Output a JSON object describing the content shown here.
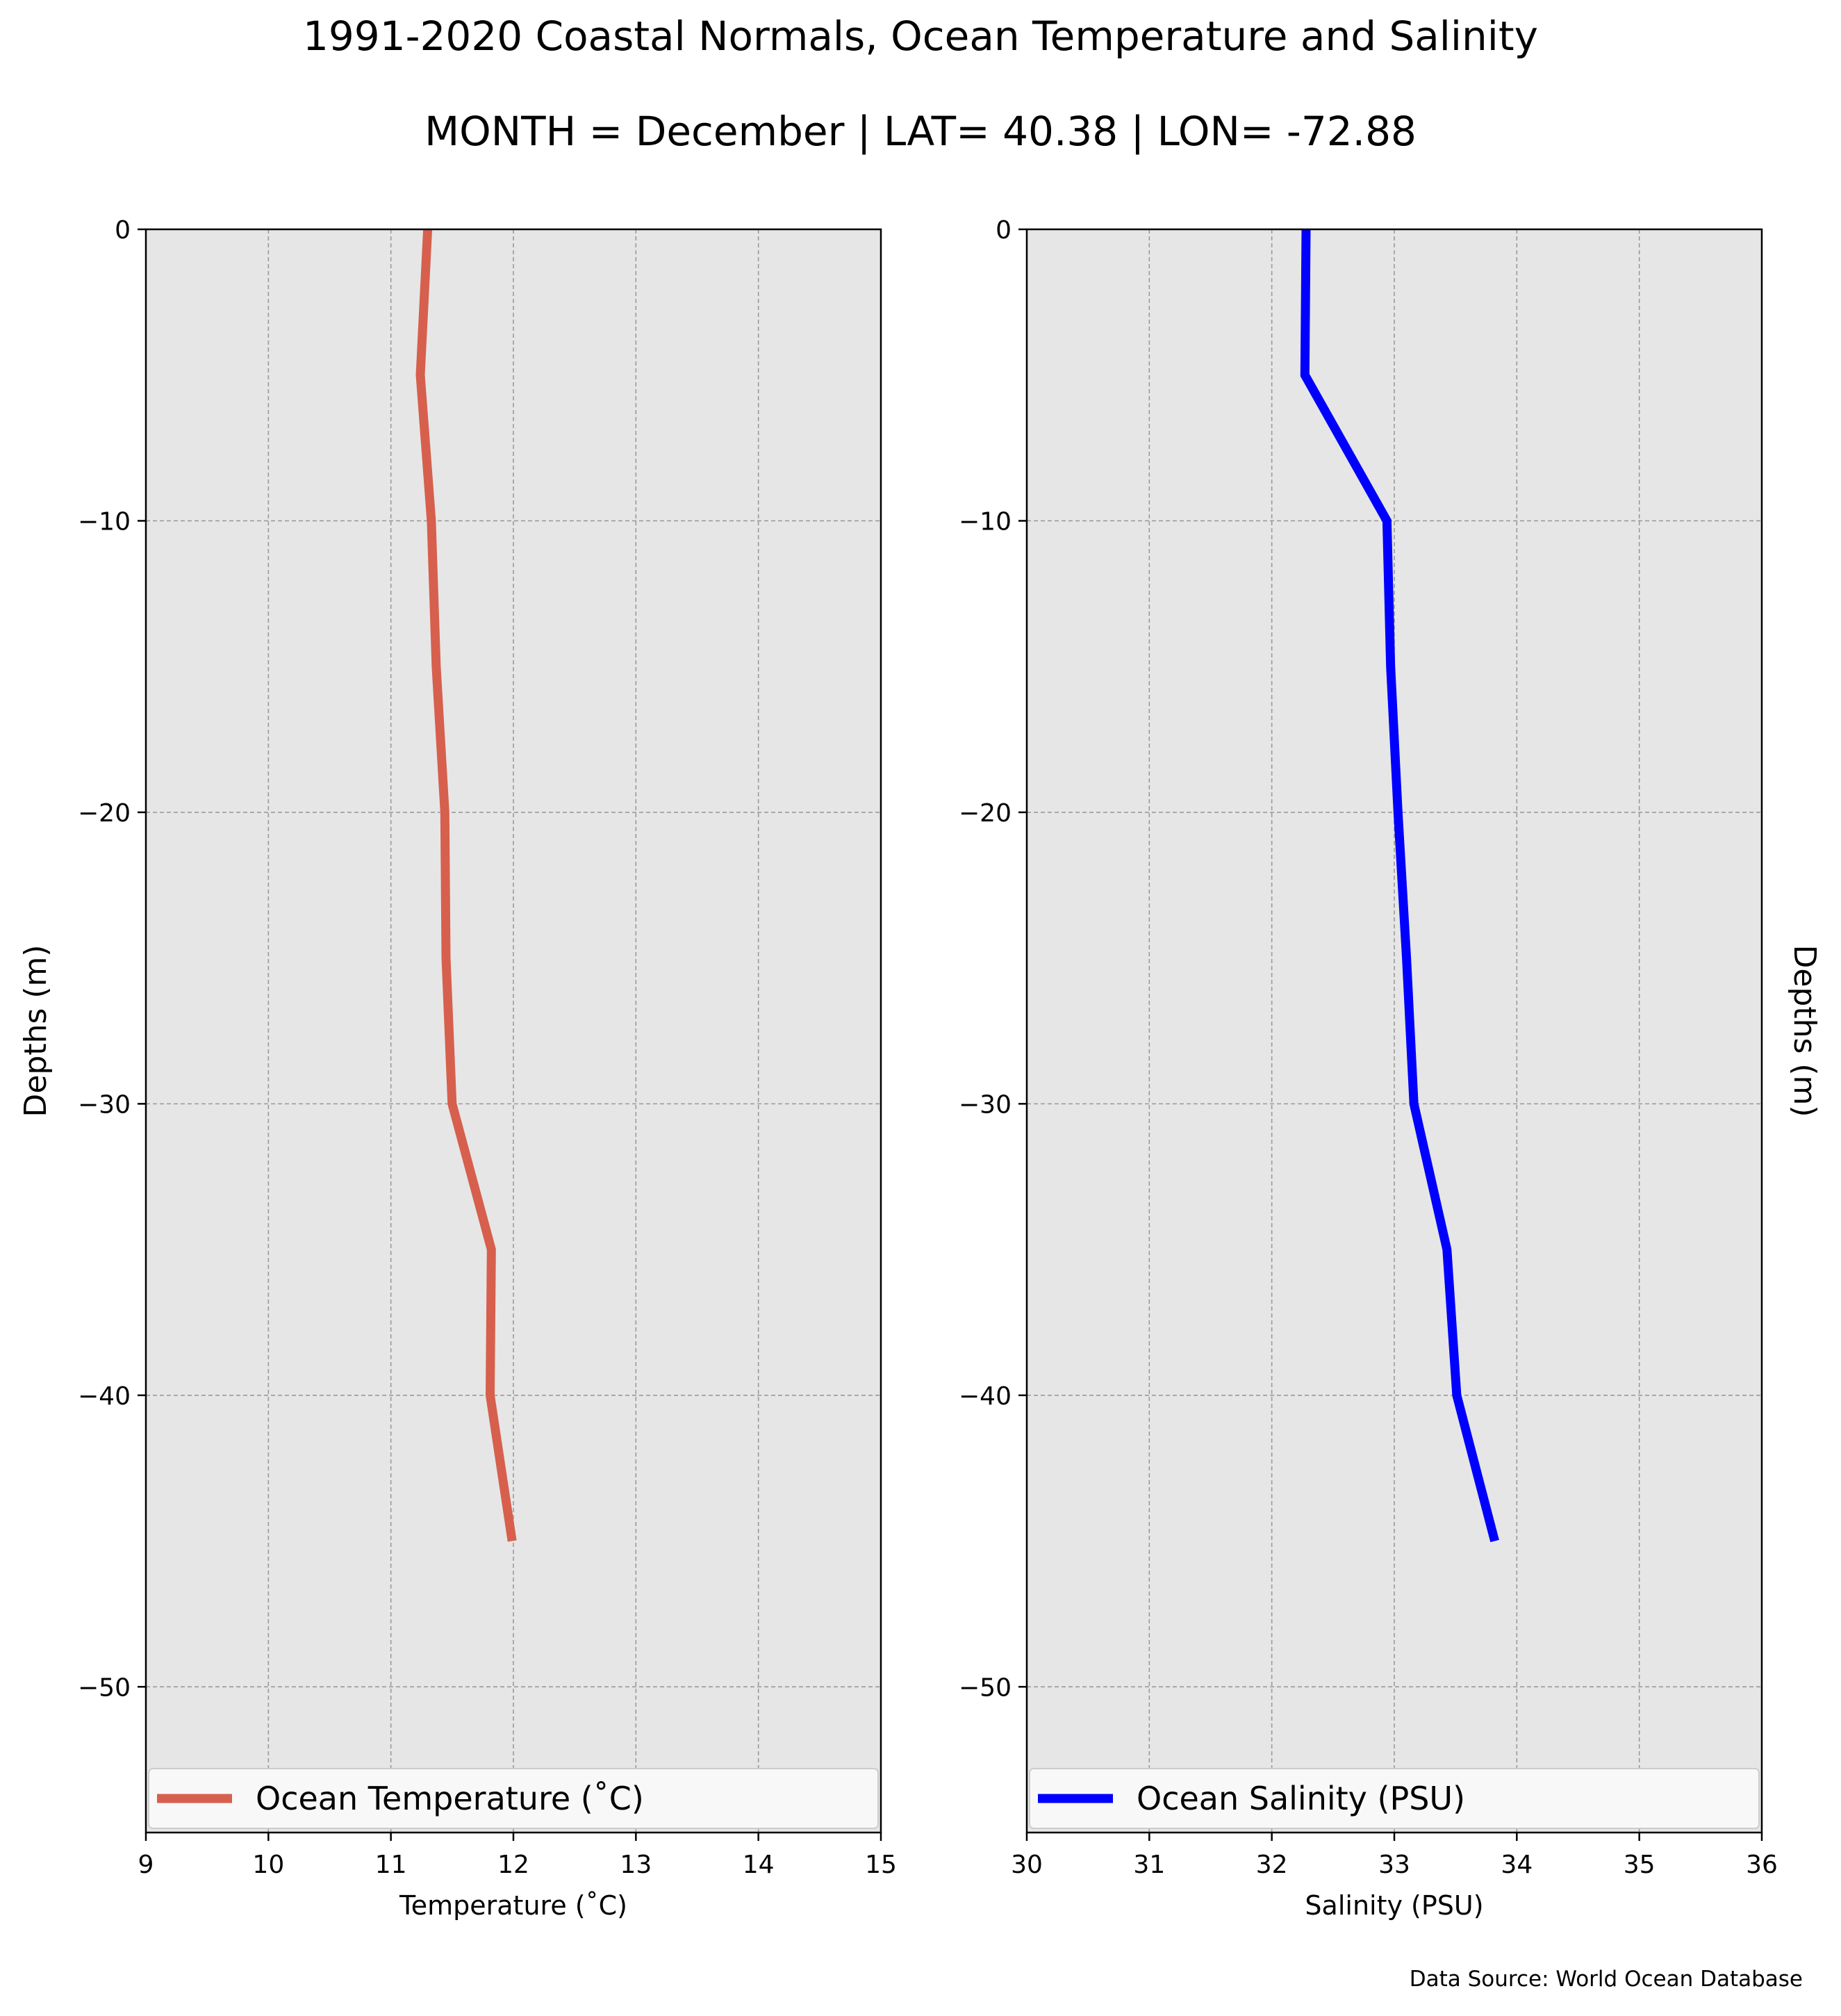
{
  "figure": {
    "title": "1991-2020 Coastal Normals, Ocean Temperature and Salinity",
    "subtitle": "MONTH = December | LAT= 40.38 | LON= -72.88",
    "source": "Data Source: World Ocean Database",
    "background": "#e6e6e6"
  },
  "chart_data": [
    {
      "type": "line",
      "xlabel": "Temperature (˚C)",
      "ylabel": "Depths (m)",
      "xlim": [
        9,
        15
      ],
      "ylim": [
        -55,
        0
      ],
      "xticks": [
        9,
        10,
        11,
        12,
        13,
        14,
        15
      ],
      "yticks": [
        0,
        -10,
        -20,
        -30,
        -40,
        -50
      ],
      "grid": true,
      "legend_position": "bottom",
      "series": [
        {
          "name": "Ocean Temperature (˚C)",
          "color": "#d6604d",
          "x": [
            11.3,
            11.24,
            11.33,
            11.37,
            11.44,
            11.45,
            11.5,
            11.82,
            11.81,
            11.99
          ],
          "y": [
            0,
            -5,
            -10,
            -15,
            -20,
            -25,
            -30,
            -35,
            -40,
            -45
          ]
        }
      ]
    },
    {
      "type": "line",
      "xlabel": "Salinity (PSU)",
      "ylabel": "Depths (m)",
      "xlim": [
        30,
        36
      ],
      "ylim": [
        -55,
        0
      ],
      "xticks": [
        30,
        31,
        32,
        33,
        34,
        35,
        36
      ],
      "yticks": [
        0,
        -10,
        -20,
        -30,
        -40,
        -50
      ],
      "grid": true,
      "legend_position": "bottom",
      "series": [
        {
          "name": "Ocean Salinity (PSU)",
          "color": "#0000ff",
          "x": [
            32.28,
            32.27,
            32.94,
            32.97,
            33.03,
            33.1,
            33.16,
            33.43,
            33.51,
            33.82
          ],
          "y": [
            0,
            -5,
            -10,
            -15,
            -20,
            -25,
            -30,
            -35,
            -40,
            -45
          ]
        }
      ]
    }
  ]
}
